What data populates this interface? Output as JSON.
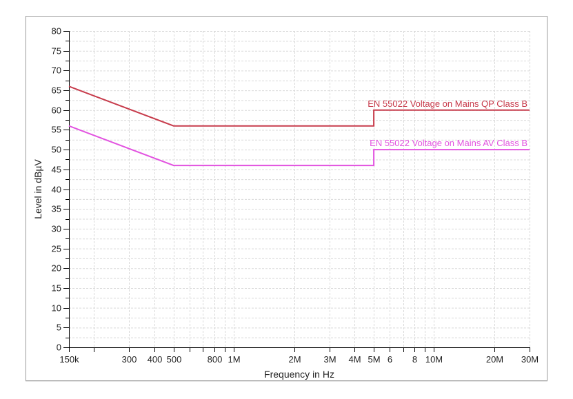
{
  "panel": {
    "background": "#ffffff",
    "border_color": "#9a9a9a"
  },
  "chart_data": {
    "type": "line",
    "title": "",
    "grid": {
      "on": true,
      "color": "#d9d9d9",
      "style": "dashed"
    },
    "legend_position": "inline-right-above-line",
    "x_axis": {
      "label": "Frequency in Hz",
      "scale": "log",
      "min": 150000,
      "max": 30000000,
      "ticks": [
        {
          "value": 150000,
          "label": "150k"
        },
        {
          "value": 200000,
          "label": ""
        },
        {
          "value": 300000,
          "label": "300"
        },
        {
          "value": 400000,
          "label": "400"
        },
        {
          "value": 500000,
          "label": "500"
        },
        {
          "value": 600000,
          "label": ""
        },
        {
          "value": 700000,
          "label": ""
        },
        {
          "value": 800000,
          "label": "800"
        },
        {
          "value": 900000,
          "label": ""
        },
        {
          "value": 1000000,
          "label": "1M"
        },
        {
          "value": 2000000,
          "label": "2M"
        },
        {
          "value": 3000000,
          "label": "3M"
        },
        {
          "value": 4000000,
          "label": "4M"
        },
        {
          "value": 5000000,
          "label": "5M"
        },
        {
          "value": 6000000,
          "label": "6"
        },
        {
          "value": 7000000,
          "label": ""
        },
        {
          "value": 8000000,
          "label": "8"
        },
        {
          "value": 9000000,
          "label": ""
        },
        {
          "value": 10000000,
          "label": "10M"
        },
        {
          "value": 20000000,
          "label": "20M"
        },
        {
          "value": 30000000,
          "label": "30M"
        }
      ]
    },
    "y_axis": {
      "label": "Level in dBµV",
      "scale": "linear",
      "min": 0,
      "max": 80,
      "major_step": 5,
      "minor_step": 2.5,
      "ticks": [
        {
          "value": 0,
          "label": "0"
        },
        {
          "value": 5,
          "label": "5"
        },
        {
          "value": 10,
          "label": "10"
        },
        {
          "value": 15,
          "label": "15"
        },
        {
          "value": 20,
          "label": "20"
        },
        {
          "value": 25,
          "label": "25"
        },
        {
          "value": 30,
          "label": "30"
        },
        {
          "value": 35,
          "label": "35"
        },
        {
          "value": 40,
          "label": "40"
        },
        {
          "value": 45,
          "label": "45"
        },
        {
          "value": 50,
          "label": "50"
        },
        {
          "value": 55,
          "label": "55"
        },
        {
          "value": 60,
          "label": "60"
        },
        {
          "value": 65,
          "label": "65"
        },
        {
          "value": 70,
          "label": "70"
        },
        {
          "value": 75,
          "label": "75"
        },
        {
          "value": 80,
          "label": "80"
        }
      ]
    },
    "series": [
      {
        "name": "EN 55022 Voltage on Mains QP Class B",
        "color": "#c73b4b",
        "points": [
          [
            150000,
            66
          ],
          [
            500000,
            56
          ],
          [
            5000000,
            56
          ],
          [
            5000000,
            60
          ],
          [
            30000000,
            60
          ]
        ]
      },
      {
        "name": "EN 55022 Voltage on Mains AV Class B",
        "color": "#e253e0",
        "points": [
          [
            150000,
            56
          ],
          [
            500000,
            46
          ],
          [
            5000000,
            46
          ],
          [
            5000000,
            50
          ],
          [
            30000000,
            50
          ]
        ]
      }
    ],
    "axis_color": "#000000",
    "text_color": "#1f1f1f"
  }
}
